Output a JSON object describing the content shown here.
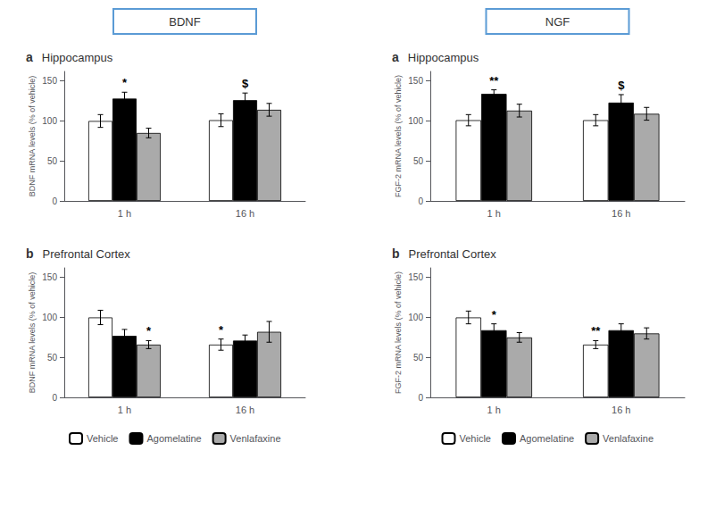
{
  "chart_data": [
    {
      "type": "bar",
      "header": "BDNF",
      "header_color": "#5b9bd5",
      "title": "a",
      "subtitle": "Hippocampus",
      "ylabel": "BDNF mRNA levels (% of vehicle)",
      "categories": [
        "1 h",
        "16 h"
      ],
      "series": [
        {
          "name": "Vehicle",
          "color": "white",
          "values": [
            100,
            101
          ],
          "errors": [
            8,
            8
          ]
        },
        {
          "name": "Agomelatine",
          "color": "black",
          "values": [
            128,
            126
          ],
          "errors": [
            8,
            9
          ]
        },
        {
          "name": "Venlafaxine",
          "color": "#aaaaaa",
          "values": [
            85,
            114
          ],
          "errors": [
            6,
            8
          ]
        }
      ],
      "annotations": [
        {
          "category": "1 h",
          "series": "Agomelatine",
          "text": "*"
        },
        {
          "category": "16 h",
          "series": "Agomelatine",
          "text": "$"
        }
      ],
      "ylim": [
        0,
        162
      ],
      "yticks": [
        0,
        50,
        100,
        150
      ],
      "grid": false
    },
    {
      "type": "bar",
      "title": "b",
      "subtitle": "Prefrontal Cortex",
      "ylabel": "BDNF mRNA levels (% of vehicle)",
      "categories": [
        "1 h",
        "16 h"
      ],
      "series": [
        {
          "name": "Vehicle",
          "color": "white",
          "values": [
            100,
            66
          ],
          "errors": [
            9,
            7
          ]
        },
        {
          "name": "Agomelatine",
          "color": "black",
          "values": [
            77,
            71
          ],
          "errors": [
            8,
            7
          ]
        },
        {
          "name": "Venlafaxine",
          "color": "#aaaaaa",
          "values": [
            66,
            82
          ],
          "errors": [
            5,
            13
          ]
        }
      ],
      "annotations": [
        {
          "category": "1 h",
          "series": "Venlafaxine",
          "text": "*"
        },
        {
          "category": "16 h",
          "series": "Vehicle",
          "text": "*"
        }
      ],
      "ylim": [
        0,
        162
      ],
      "yticks": [
        0,
        50,
        100,
        150
      ],
      "grid": false,
      "legend": "bottom"
    },
    {
      "type": "bar",
      "header": "NGF",
      "header_color": "#5b9bd5",
      "title": "a",
      "subtitle": "Hippocampus",
      "ylabel": "FGF-2 mRNA levels (% of vehicle)",
      "categories": [
        "1 h",
        "16 h"
      ],
      "series": [
        {
          "name": "Vehicle",
          "color": "white",
          "values": [
            101,
            101
          ],
          "errors": [
            7,
            7
          ]
        },
        {
          "name": "Agomelatine",
          "color": "black",
          "values": [
            134,
            123
          ],
          "errors": [
            5,
            10
          ]
        },
        {
          "name": "Venlafaxine",
          "color": "#aaaaaa",
          "values": [
            113,
            109
          ],
          "errors": [
            8,
            8
          ]
        }
      ],
      "annotations": [
        {
          "category": "1 h",
          "series": "Agomelatine",
          "text": "**"
        },
        {
          "category": "16 h",
          "series": "Agomelatine",
          "text": "$"
        }
      ],
      "ylim": [
        0,
        162
      ],
      "yticks": [
        0,
        50,
        100,
        150
      ],
      "grid": false
    },
    {
      "type": "bar",
      "title": "b",
      "subtitle": "Prefrontal Cortex",
      "ylabel": "FGF-2 mRNA levels (% of vehicle)",
      "categories": [
        "1 h",
        "16 h"
      ],
      "series": [
        {
          "name": "Vehicle",
          "color": "white",
          "values": [
            100,
            66
          ],
          "errors": [
            8,
            5
          ]
        },
        {
          "name": "Agomelatine",
          "color": "black",
          "values": [
            84,
            84
          ],
          "errors": [
            8,
            8
          ]
        },
        {
          "name": "Venlafaxine",
          "color": "#aaaaaa",
          "values": [
            75,
            80
          ],
          "errors": [
            6,
            7
          ]
        }
      ],
      "annotations": [
        {
          "category": "1 h",
          "series": "Agomelatine",
          "text": "*"
        },
        {
          "category": "16 h",
          "series": "Vehicle",
          "text": "**"
        }
      ],
      "ylim": [
        0,
        162
      ],
      "yticks": [
        0,
        50,
        100,
        150
      ],
      "grid": false,
      "legend": "bottom"
    }
  ]
}
